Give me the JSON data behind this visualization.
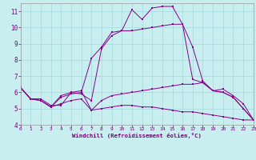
{
  "xlabel": "Windchill (Refroidissement éolien,°C)",
  "bg_color": "#c8eef0",
  "grid_color": "#a8dce0",
  "line_color": "#880088",
  "xlim": [
    0,
    23
  ],
  "ylim": [
    4,
    11.5
  ],
  "yticks": [
    4,
    5,
    6,
    7,
    8,
    9,
    10,
    11
  ],
  "xticks": [
    0,
    1,
    2,
    3,
    4,
    5,
    6,
    7,
    8,
    9,
    10,
    11,
    12,
    13,
    14,
    15,
    16,
    17,
    18,
    19,
    20,
    21,
    22,
    23
  ],
  "curves": [
    [
      6.3,
      5.6,
      5.6,
      5.2,
      5.2,
      6.0,
      5.9,
      5.5,
      8.7,
      9.5,
      9.8,
      11.1,
      10.5,
      11.2,
      11.3,
      11.3,
      10.2,
      8.8,
      6.7,
      6.1,
      6.2,
      5.8,
      5.3,
      4.3
    ],
    [
      6.3,
      5.6,
      5.5,
      5.1,
      5.8,
      6.0,
      6.1,
      4.9,
      5.5,
      5.8,
      5.9,
      6.0,
      6.1,
      6.2,
      6.3,
      6.4,
      6.5,
      6.5,
      6.6,
      6.1,
      6.0,
      5.7,
      5.0,
      4.3
    ],
    [
      6.3,
      5.6,
      5.5,
      5.1,
      5.7,
      5.9,
      6.0,
      8.1,
      8.8,
      9.7,
      9.8,
      9.8,
      9.9,
      10.0,
      10.1,
      10.2,
      10.2,
      6.8,
      6.6,
      6.1,
      6.0,
      5.7,
      5.0,
      4.3
    ],
    [
      6.3,
      5.6,
      5.5,
      5.1,
      5.3,
      5.5,
      5.6,
      4.9,
      5.0,
      5.1,
      5.2,
      5.2,
      5.1,
      5.1,
      5.0,
      4.9,
      4.8,
      4.8,
      4.7,
      4.6,
      4.5,
      4.4,
      4.3,
      4.3
    ]
  ]
}
